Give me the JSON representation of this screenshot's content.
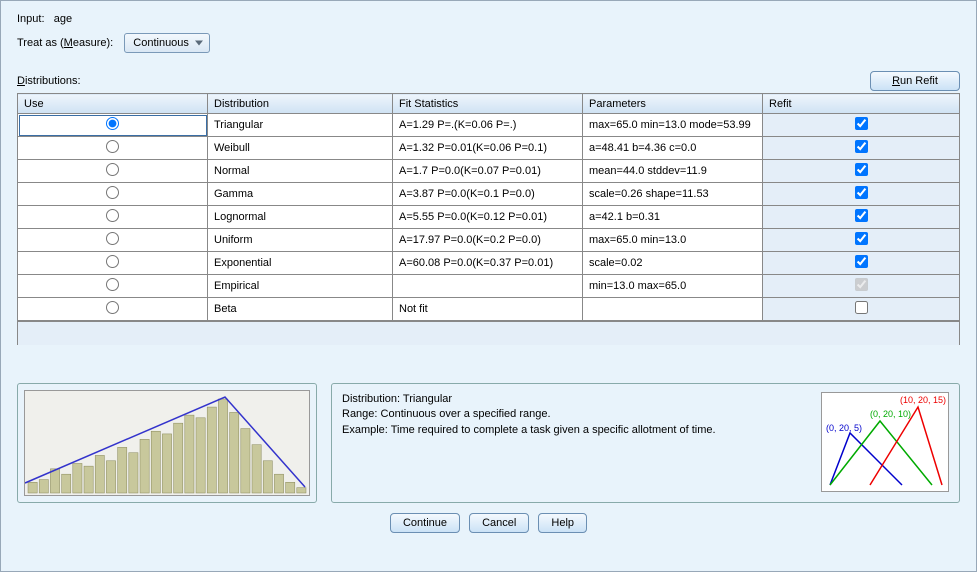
{
  "input": {
    "label": "Input:",
    "value": "age"
  },
  "treatAs": {
    "label": "Treat as (Measure):",
    "selected": "Continuous"
  },
  "distributionsLabel": "Distributions:",
  "runRefitLabel": "Run Refit",
  "columns": {
    "use": "Use",
    "dist": "Distribution",
    "fit": "Fit Statistics",
    "params": "Parameters",
    "refit": "Refit"
  },
  "rows": [
    {
      "dist": "Triangular",
      "fit": "A=1.29 P=.(K=0.06 P=.)",
      "params": "max=65.0 min=13.0 mode=53.99",
      "selected": true,
      "refit": true
    },
    {
      "dist": "Weibull",
      "fit": "A=1.32 P=0.01(K=0.06 P=0.1)",
      "params": "a=48.41 b=4.36 c=0.0",
      "selected": false,
      "refit": true
    },
    {
      "dist": "Normal",
      "fit": "A=1.7 P=0.0(K=0.07 P=0.01)",
      "params": "mean=44.0 stddev=11.9",
      "selected": false,
      "refit": true
    },
    {
      "dist": "Gamma",
      "fit": "A=3.87 P=0.0(K=0.1 P=0.0)",
      "params": "scale=0.26 shape=11.53",
      "selected": false,
      "refit": true
    },
    {
      "dist": "Lognormal",
      "fit": "A=5.55 P=0.0(K=0.12 P=0.01)",
      "params": "a=42.1 b=0.31",
      "selected": false,
      "refit": true
    },
    {
      "dist": "Uniform",
      "fit": "A=17.97 P=0.0(K=0.2 P=0.0)",
      "params": "max=65.0 min=13.0",
      "selected": false,
      "refit": true
    },
    {
      "dist": "Exponential",
      "fit": "A=60.08 P=0.0(K=0.37 P=0.01)",
      "params": "scale=0.02",
      "selected": false,
      "refit": true
    },
    {
      "dist": "Empirical",
      "fit": "",
      "params": "min=13.0 max=65.0",
      "selected": false,
      "refit": true,
      "refitDisabled": true
    },
    {
      "dist": "Beta",
      "fit": "Not fit",
      "params": "",
      "selected": false,
      "refit": false
    }
  ],
  "description": {
    "line1": "Distribution: Triangular",
    "line2": "Range: Continuous over a specified range.",
    "line3": "Example: Time required to complete a task given a specific allotment of time."
  },
  "triangles": {
    "a": {
      "label": "(0, 20, 5)",
      "color": "#0000cc"
    },
    "b": {
      "label": "(0, 20, 10)",
      "color": "#00aa00"
    },
    "c": {
      "label": "(10, 20, 15)",
      "color": "#ee0000"
    }
  },
  "buttons": {
    "continue": "Continue",
    "cancel": "Cancel",
    "help": "Help"
  },
  "histogram": {
    "bars": [
      8,
      10,
      18,
      14,
      22,
      20,
      28,
      24,
      34,
      30,
      40,
      46,
      44,
      52,
      58,
      56,
      64,
      70,
      60,
      48,
      36,
      24,
      14,
      8,
      4
    ],
    "barColor": "#c8c89c",
    "lineColor": "#3333cc",
    "linePoints": [
      [
        0,
        92
      ],
      [
        200,
        6
      ],
      [
        280,
        96
      ]
    ]
  }
}
